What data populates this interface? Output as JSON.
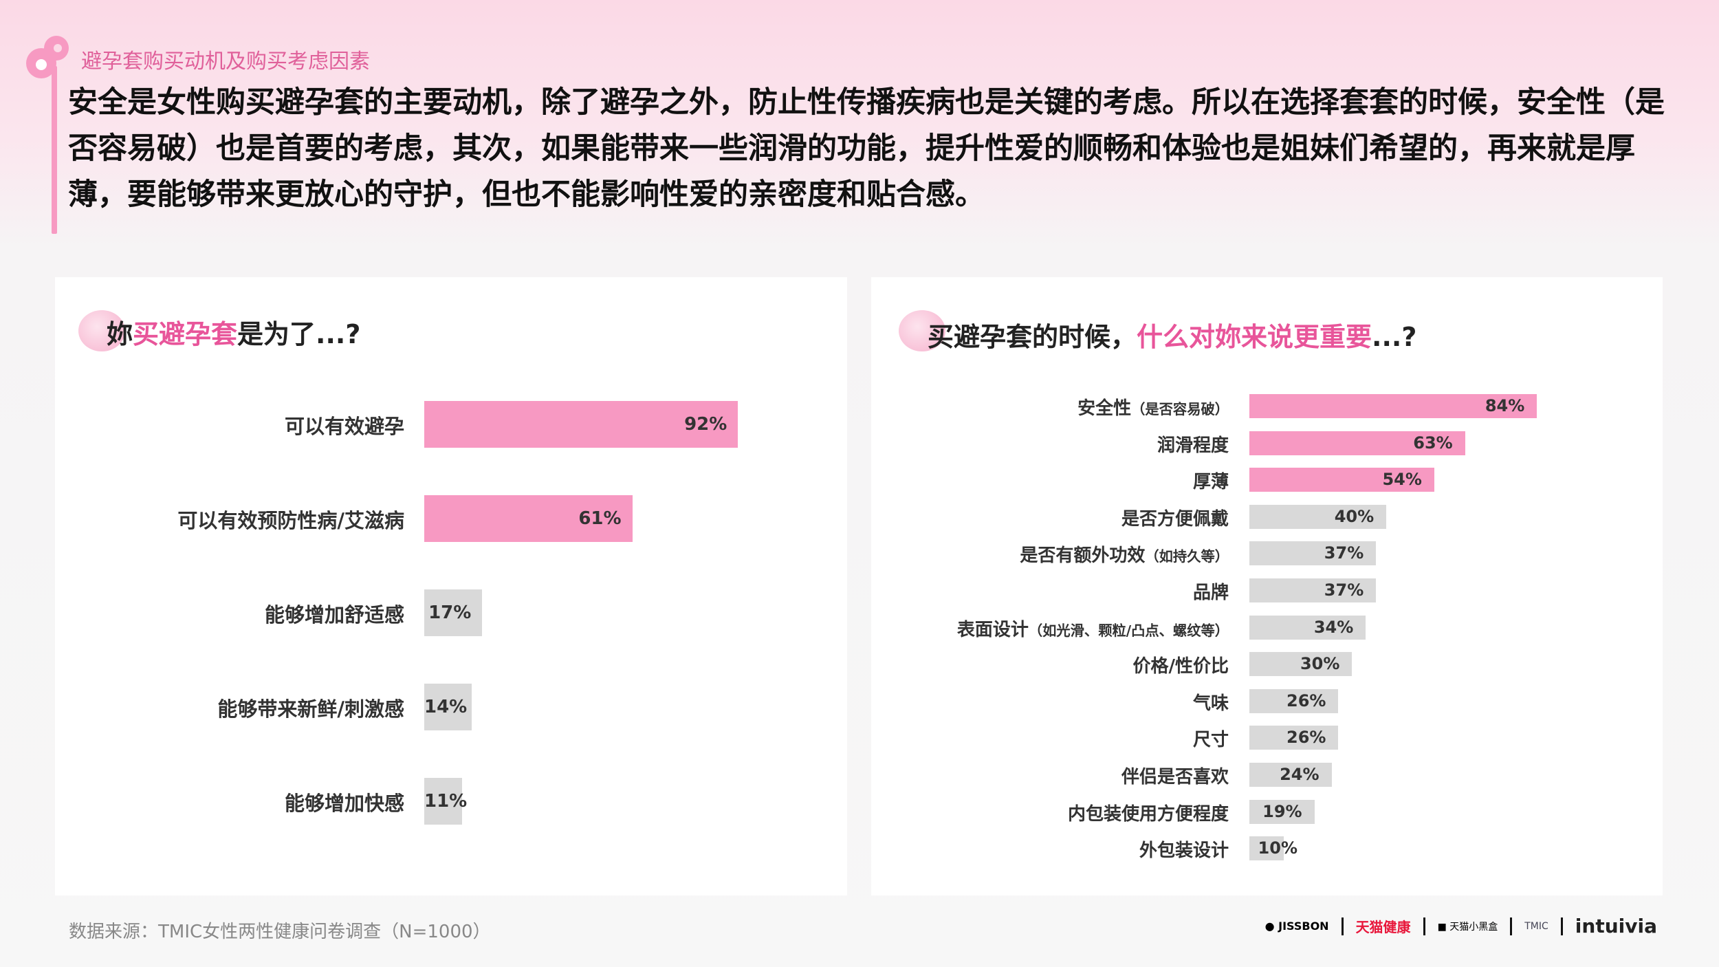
{
  "header": {
    "section_title": "避孕套购买动机及购买考虑因素",
    "headline": "安全是女性购买避孕套的主要动机，除了避孕之外，防止性传播疾病也是关键的考虑。所以在选择套套的时候，安全性（是否容易破）也是首要的考虑，其次，如果能带来一些润滑的功能，提升性爱的顺畅和体验也是姐妹们希望的，再来就是厚薄，要能够带来更放心的守护，但也不能影响性爱的亲密度和贴合感。"
  },
  "colors": {
    "accent": "#f799c2",
    "neutral": "#d9d9d9",
    "highlight_text": "#e8559a"
  },
  "chart_data": [
    {
      "type": "bar",
      "orientation": "horizontal",
      "title": {
        "pre": "妳",
        "hl": "买避孕套",
        "post": "是为了...?"
      },
      "categories": [
        "可以有效避孕",
        "可以有效预防性病/艾滋病",
        "能够增加舒适感",
        "能够带来新鲜/刺激感",
        "能够增加快感"
      ],
      "values": [
        92,
        61,
        17,
        14,
        11
      ],
      "labels": [
        "92%",
        "61%",
        "17%",
        "14%",
        "11%"
      ],
      "highlighted": [
        true,
        true,
        false,
        false,
        false
      ],
      "xlim": [
        0,
        100
      ]
    },
    {
      "type": "bar",
      "orientation": "horizontal",
      "title": {
        "pre": "买避孕套的时候，",
        "hl": "什么对妳来说更重要",
        "post": "...?"
      },
      "categories": [
        [
          "安全性",
          "（是否容易破）"
        ],
        [
          "润滑程度",
          ""
        ],
        [
          "厚薄",
          ""
        ],
        [
          "是否方便佩戴",
          ""
        ],
        [
          "是否有额外功效",
          "（如持久等）"
        ],
        [
          "品牌",
          ""
        ],
        [
          "表面设计",
          "（如光滑、颗粒/凸点、螺纹等）"
        ],
        [
          "价格/性价比",
          ""
        ],
        [
          "气味",
          ""
        ],
        [
          "尺寸",
          ""
        ],
        [
          "伴侣是否喜欢",
          ""
        ],
        [
          "内包装使用方便程度",
          ""
        ],
        [
          "外包装设计",
          ""
        ]
      ],
      "values": [
        84,
        63,
        54,
        40,
        37,
        37,
        34,
        30,
        26,
        26,
        24,
        19,
        10
      ],
      "labels": [
        "84%",
        "63%",
        "54%",
        "40%",
        "37%",
        "37%",
        "34%",
        "30%",
        "26%",
        "26%",
        "24%",
        "19%",
        "10%"
      ],
      "highlighted": [
        true,
        true,
        true,
        false,
        false,
        false,
        false,
        false,
        false,
        false,
        false,
        false,
        false
      ],
      "xlim": [
        0,
        100
      ]
    }
  ],
  "footer": {
    "source": "数据来源：TMIC女性两性健康问卷调查（N=1000）",
    "logos": [
      "JISSBON 杰士邦",
      "天猫健康",
      "天猫小黑盒",
      "TMIC 天猫新品创新中心",
      "intuivia"
    ]
  }
}
